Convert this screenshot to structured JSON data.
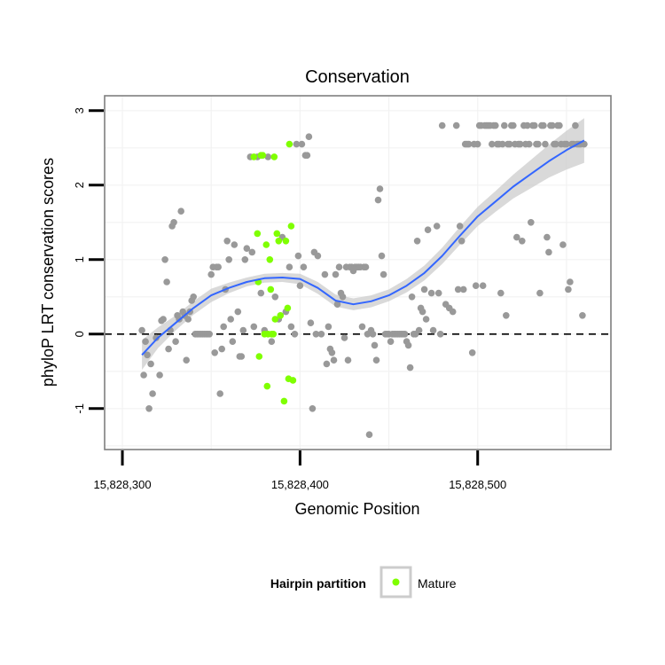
{
  "chart_data": {
    "type": "scatter",
    "title": "Conservation",
    "xlabel": "Genomic Position",
    "ylabel": "phyloP LRT conservation scores",
    "xlim": [
      15828290,
      15828575
    ],
    "ylim": [
      -1.55,
      3.2
    ],
    "x_ticks": [
      {
        "value": 15828300,
        "label": "15,828,300"
      },
      {
        "value": 15828400,
        "label": "15,828,400"
      },
      {
        "value": 15828500,
        "label": "15,828,500"
      }
    ],
    "y_ticks": [
      {
        "value": -1,
        "label": "-1"
      },
      {
        "value": 0,
        "label": "0"
      },
      {
        "value": 1,
        "label": "1"
      },
      {
        "value": 2,
        "label": "2"
      },
      {
        "value": 3,
        "label": "3"
      }
    ],
    "grid": true,
    "reference_line": {
      "y": 0,
      "style": "dashed"
    },
    "legend": {
      "title": "Hairpin partition",
      "placement": "bottom",
      "items": [
        {
          "label": "Mature",
          "color": "#7fff00"
        }
      ]
    },
    "colors": {
      "other": "#999999",
      "mature": "#7fff00",
      "smooth_line": "#3366ff",
      "confidence_band": "#cccccc",
      "panel_border": "#7f7f7f"
    },
    "series": [
      {
        "name": "",
        "color": "#999999",
        "points": [
          [
            15828311,
            0.05
          ],
          [
            15828312,
            -0.55
          ],
          [
            15828313,
            -0.1
          ],
          [
            15828314,
            -0.28
          ],
          [
            15828315,
            -1.0
          ],
          [
            15828316,
            -0.4
          ],
          [
            15828317,
            -0.8
          ],
          [
            15828319,
            -0.05
          ],
          [
            15828321,
            -0.55
          ],
          [
            15828322,
            0.18
          ],
          [
            15828323,
            0.2
          ],
          [
            15828324,
            1.0
          ],
          [
            15828325,
            0.7
          ],
          [
            15828326,
            -0.2
          ],
          [
            15828327,
            0.05
          ],
          [
            15828328,
            1.45
          ],
          [
            15828329,
            1.5
          ],
          [
            15828330,
            -0.1
          ],
          [
            15828331,
            0.25
          ],
          [
            15828332,
            0.2
          ],
          [
            15828333,
            1.65
          ],
          [
            15828334,
            0.3
          ],
          [
            15828335,
            0.25
          ],
          [
            15828336,
            -0.35
          ],
          [
            15828337,
            0.2
          ],
          [
            15828338,
            0.3
          ],
          [
            15828339,
            0.45
          ],
          [
            15828340,
            0.5
          ],
          [
            15828341,
            0.0
          ],
          [
            15828342,
            0.0
          ],
          [
            15828343,
            0.0
          ],
          [
            15828344,
            0.0
          ],
          [
            15828345,
            0.0
          ],
          [
            15828346,
            0.0
          ],
          [
            15828347,
            0.0
          ],
          [
            15828348,
            0.0
          ],
          [
            15828349,
            0.0
          ],
          [
            15828350,
            0.8
          ],
          [
            15828351,
            0.9
          ],
          [
            15828352,
            -0.25
          ],
          [
            15828353,
            0.9
          ],
          [
            15828354,
            0.9
          ],
          [
            15828355,
            -0.8
          ],
          [
            15828356,
            -0.2
          ],
          [
            15828357,
            0.1
          ],
          [
            15828358,
            0.6
          ],
          [
            15828359,
            1.25
          ],
          [
            15828360,
            1.0
          ],
          [
            15828361,
            0.2
          ],
          [
            15828362,
            -0.1
          ],
          [
            15828363,
            1.2
          ],
          [
            15828365,
            0.3
          ],
          [
            15828366,
            -0.3
          ],
          [
            15828367,
            -0.3
          ],
          [
            15828368,
            0.05
          ],
          [
            15828369,
            1.0
          ],
          [
            15828370,
            1.15
          ],
          [
            15828372,
            2.38
          ],
          [
            15828373,
            1.1
          ],
          [
            15828374,
            0.1
          ],
          [
            15828376,
            2.38
          ],
          [
            15828378,
            0.55
          ],
          [
            15828380,
            0.05
          ],
          [
            15828382,
            2.38
          ],
          [
            15828384,
            -0.1
          ],
          [
            15828386,
            0.5
          ],
          [
            15828388,
            0.2
          ],
          [
            15828390,
            1.3
          ],
          [
            15828392,
            0.3
          ],
          [
            15828394,
            0.9
          ],
          [
            15828395,
            0.1
          ],
          [
            15828397,
            0.0
          ],
          [
            15828398,
            2.55
          ],
          [
            15828399,
            1.05
          ],
          [
            15828400,
            0.65
          ],
          [
            15828401,
            2.55
          ],
          [
            15828402,
            0.9
          ],
          [
            15828403,
            2.4
          ],
          [
            15828404,
            2.4
          ],
          [
            15828405,
            2.65
          ],
          [
            15828406,
            0.15
          ],
          [
            15828407,
            -1.0
          ],
          [
            15828408,
            1.1
          ],
          [
            15828409,
            0.0
          ],
          [
            15828410,
            1.05
          ],
          [
            15828412,
            0.0
          ],
          [
            15828414,
            0.8
          ],
          [
            15828415,
            -0.4
          ],
          [
            15828416,
            0.1
          ],
          [
            15828417,
            -0.2
          ],
          [
            15828418,
            -0.25
          ],
          [
            15828419,
            -0.35
          ],
          [
            15828420,
            0.8
          ],
          [
            15828421,
            0.4
          ],
          [
            15828422,
            0.9
          ],
          [
            15828423,
            0.55
          ],
          [
            15828424,
            0.5
          ],
          [
            15828425,
            -0.05
          ],
          [
            15828426,
            0.9
          ],
          [
            15828427,
            -0.35
          ],
          [
            15828428,
            0.9
          ],
          [
            15828429,
            0.9
          ],
          [
            15828430,
            0.85
          ],
          [
            15828431,
            0.9
          ],
          [
            15828432,
            0.9
          ],
          [
            15828433,
            0.9
          ],
          [
            15828434,
            0.9
          ],
          [
            15828435,
            0.1
          ],
          [
            15828436,
            0.9
          ],
          [
            15828437,
            0.9
          ],
          [
            15828438,
            0.0
          ],
          [
            15828439,
            -1.35
          ],
          [
            15828440,
            0.05
          ],
          [
            15828441,
            0.0
          ],
          [
            15828442,
            -0.15
          ],
          [
            15828443,
            -0.35
          ],
          [
            15828444,
            1.8
          ],
          [
            15828445,
            1.95
          ],
          [
            15828446,
            1.05
          ],
          [
            15828447,
            0.8
          ],
          [
            15828448,
            0.0
          ],
          [
            15828449,
            0.0
          ],
          [
            15828450,
            0.0
          ],
          [
            15828451,
            -0.1
          ],
          [
            15828452,
            0.0
          ],
          [
            15828453,
            0.0
          ],
          [
            15828454,
            0.0
          ],
          [
            15828455,
            0.0
          ],
          [
            15828456,
            0.0
          ],
          [
            15828457,
            0.0
          ],
          [
            15828458,
            0.0
          ],
          [
            15828459,
            0.0
          ],
          [
            15828460,
            -0.1
          ],
          [
            15828461,
            -0.15
          ],
          [
            15828462,
            -0.45
          ],
          [
            15828463,
            0.5
          ],
          [
            15828464,
            0.0
          ],
          [
            15828465,
            0.0
          ],
          [
            15828466,
            1.25
          ],
          [
            15828467,
            0.05
          ],
          [
            15828468,
            0.35
          ],
          [
            15828469,
            0.3
          ],
          [
            15828470,
            0.6
          ],
          [
            15828471,
            0.2
          ],
          [
            15828472,
            1.4
          ],
          [
            15828474,
            0.55
          ],
          [
            15828475,
            0.05
          ],
          [
            15828477,
            1.45
          ],
          [
            15828478,
            0.55
          ],
          [
            15828479,
            0.0
          ],
          [
            15828480,
            2.8
          ],
          [
            15828482,
            0.4
          ],
          [
            15828484,
            0.35
          ],
          [
            15828486,
            0.3
          ],
          [
            15828488,
            2.8
          ],
          [
            15828489,
            0.6
          ],
          [
            15828490,
            1.45
          ],
          [
            15828491,
            1.25
          ],
          [
            15828492,
            0.6
          ],
          [
            15828493,
            2.55
          ],
          [
            15828494,
            2.55
          ],
          [
            15828495,
            2.55
          ],
          [
            15828497,
            -0.25
          ],
          [
            15828498,
            2.55
          ],
          [
            15828499,
            0.65
          ],
          [
            15828500,
            2.55
          ],
          [
            15828501,
            2.8
          ],
          [
            15828502,
            2.8
          ],
          [
            15828503,
            0.65
          ],
          [
            15828504,
            2.8
          ],
          [
            15828505,
            2.8
          ],
          [
            15828506,
            2.8
          ],
          [
            15828507,
            2.8
          ],
          [
            15828508,
            2.55
          ],
          [
            15828509,
            2.8
          ],
          [
            15828510,
            2.8
          ],
          [
            15828511,
            2.55
          ],
          [
            15828512,
            2.55
          ],
          [
            15828513,
            0.55
          ],
          [
            15828514,
            2.55
          ],
          [
            15828515,
            2.8
          ],
          [
            15828516,
            0.25
          ],
          [
            15828517,
            2.55
          ],
          [
            15828518,
            2.55
          ],
          [
            15828519,
            2.8
          ],
          [
            15828520,
            2.8
          ],
          [
            15828521,
            2.55
          ],
          [
            15828522,
            1.3
          ],
          [
            15828523,
            2.55
          ],
          [
            15828524,
            2.55
          ],
          [
            15828525,
            1.25
          ],
          [
            15828526,
            2.8
          ],
          [
            15828527,
            2.55
          ],
          [
            15828528,
            2.8
          ],
          [
            15828529,
            2.55
          ],
          [
            15828530,
            1.5
          ],
          [
            15828531,
            2.8
          ],
          [
            15828532,
            2.8
          ],
          [
            15828533,
            2.55
          ],
          [
            15828534,
            2.55
          ],
          [
            15828535,
            0.55
          ],
          [
            15828536,
            2.8
          ],
          [
            15828537,
            2.8
          ],
          [
            15828538,
            2.55
          ],
          [
            15828539,
            1.3
          ],
          [
            15828540,
            1.1
          ],
          [
            15828541,
            2.8
          ],
          [
            15828542,
            2.8
          ],
          [
            15828543,
            2.55
          ],
          [
            15828544,
            2.55
          ],
          [
            15828545,
            2.8
          ],
          [
            15828546,
            2.8
          ],
          [
            15828547,
            2.55
          ],
          [
            15828548,
            1.2
          ],
          [
            15828549,
            2.55
          ],
          [
            15828550,
            2.55
          ],
          [
            15828551,
            0.6
          ],
          [
            15828552,
            0.7
          ],
          [
            15828553,
            2.55
          ],
          [
            15828554,
            2.55
          ],
          [
            15828555,
            2.8
          ],
          [
            15828556,
            2.55
          ],
          [
            15828557,
            2.55
          ],
          [
            15828558,
            2.55
          ],
          [
            15828559,
            0.25
          ],
          [
            15828560,
            2.55
          ]
        ]
      },
      {
        "name": "Mature",
        "color": "#7fff00",
        "points": [
          [
            15828374,
            2.38
          ],
          [
            15828376,
            1.35
          ],
          [
            15828376.5,
            0.7
          ],
          [
            15828377,
            -0.3
          ],
          [
            15828378,
            2.4
          ],
          [
            15828379,
            2.4
          ],
          [
            15828380,
            0.0
          ],
          [
            15828381,
            1.2
          ],
          [
            15828381.5,
            -0.7
          ],
          [
            15828382,
            0.0
          ],
          [
            15828383,
            1.0
          ],
          [
            15828383.5,
            0.6
          ],
          [
            15828384,
            0.0
          ],
          [
            15828385,
            0.0
          ],
          [
            15828385.5,
            2.38
          ],
          [
            15828386,
            0.2
          ],
          [
            15828387,
            1.35
          ],
          [
            15828388,
            1.25
          ],
          [
            15828389,
            0.25
          ],
          [
            15828391,
            -0.9
          ],
          [
            15828392,
            1.25
          ],
          [
            15828393,
            0.35
          ],
          [
            15828393.5,
            -0.6
          ],
          [
            15828394,
            2.55
          ],
          [
            15828395,
            1.45
          ],
          [
            15828396,
            -0.62
          ]
        ]
      }
    ],
    "smooth": {
      "method": "loess",
      "x": [
        15828311,
        15828320,
        15828330,
        15828340,
        15828350,
        15828360,
        15828370,
        15828380,
        15828390,
        15828400,
        15828410,
        15828420,
        15828430,
        15828440,
        15828450,
        15828460,
        15828470,
        15828480,
        15828490,
        15828500,
        15828510,
        15828520,
        15828530,
        15828540,
        15828550,
        15828560
      ],
      "y": [
        -0.28,
        -0.05,
        0.15,
        0.35,
        0.52,
        0.62,
        0.7,
        0.75,
        0.76,
        0.74,
        0.62,
        0.45,
        0.4,
        0.44,
        0.52,
        0.65,
        0.82,
        1.05,
        1.32,
        1.58,
        1.78,
        1.98,
        2.15,
        2.32,
        2.47,
        2.6
      ],
      "lower": [
        -0.48,
        -0.19,
        0.05,
        0.26,
        0.43,
        0.55,
        0.64,
        0.69,
        0.7,
        0.67,
        0.54,
        0.37,
        0.32,
        0.36,
        0.44,
        0.56,
        0.72,
        0.94,
        1.2,
        1.45,
        1.64,
        1.82,
        1.96,
        2.1,
        2.21,
        2.3
      ],
      "upper": [
        -0.08,
        0.09,
        0.25,
        0.44,
        0.61,
        0.69,
        0.76,
        0.81,
        0.82,
        0.81,
        0.7,
        0.53,
        0.48,
        0.52,
        0.6,
        0.74,
        0.92,
        1.16,
        1.44,
        1.71,
        1.92,
        2.14,
        2.34,
        2.54,
        2.73,
        2.9
      ]
    }
  }
}
